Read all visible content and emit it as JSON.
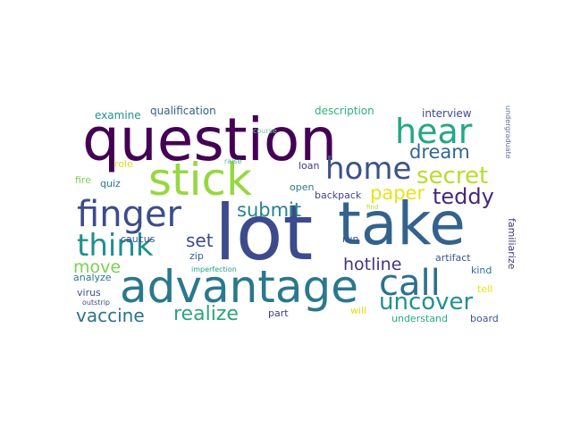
{
  "words": [
    {
      "text": "question",
      "color": "#440154"
    },
    {
      "text": "lot",
      "color": "#3b4b8c"
    },
    {
      "text": "take",
      "color": "#33638d"
    },
    {
      "text": "advantage",
      "color": "#2a788e"
    },
    {
      "text": "stick",
      "color": "#95d840"
    },
    {
      "text": "hear",
      "color": "#22a884"
    },
    {
      "text": "home",
      "color": "#3b528b"
    },
    {
      "text": "finger",
      "color": "#3d4d8a"
    },
    {
      "text": "call",
      "color": "#2c718e"
    },
    {
      "text": "think",
      "color": "#21908d"
    },
    {
      "text": "uncover",
      "color": "#21918c"
    },
    {
      "text": "secret",
      "color": "#b5de2b"
    },
    {
      "text": "dream",
      "color": "#31688e"
    },
    {
      "text": "paper",
      "color": "#e5e419"
    },
    {
      "text": "teddy",
      "color": "#482878"
    },
    {
      "text": "submit",
      "color": "#26828e"
    },
    {
      "text": "set",
      "color": "#3e4a89"
    },
    {
      "text": "realize",
      "color": "#2ea37e"
    },
    {
      "text": "vaccine",
      "color": "#2c728e"
    },
    {
      "text": "hotline",
      "color": "#46327e"
    },
    {
      "text": "move",
      "color": "#7ad151"
    },
    {
      "text": "qualification",
      "color": "#35608d"
    },
    {
      "text": "examine",
      "color": "#21918c"
    },
    {
      "text": "description",
      "color": "#2db27d"
    },
    {
      "text": "interview",
      "color": "#3e4a89"
    },
    {
      "text": "undergraduate",
      "color": "#5e6f9f"
    },
    {
      "text": "course",
      "color": "#6cc9a4"
    },
    {
      "text": "raise",
      "color": "#56b893"
    },
    {
      "text": "role",
      "color": "#d8e219"
    },
    {
      "text": "loan",
      "color": "#443a83"
    },
    {
      "text": "fire",
      "color": "#7ad151"
    },
    {
      "text": "quiz",
      "color": "#2a788e"
    },
    {
      "text": "open",
      "color": "#2a788e"
    },
    {
      "text": "backpack",
      "color": "#414487"
    },
    {
      "text": "find",
      "color": "#b8de29"
    },
    {
      "text": "familiarize",
      "color": "#46327e"
    },
    {
      "text": "run",
      "color": "#3b528b"
    },
    {
      "text": "caucus",
      "color": "#3b528b"
    },
    {
      "text": "zip",
      "color": "#33638d"
    },
    {
      "text": "artifact",
      "color": "#38588c"
    },
    {
      "text": "kind",
      "color": "#2c728e"
    },
    {
      "text": "analyze",
      "color": "#2a788e"
    },
    {
      "text": "imperfection",
      "color": "#20a386"
    },
    {
      "text": "virus",
      "color": "#3b528b"
    },
    {
      "text": "tell",
      "color": "#e3e418"
    },
    {
      "text": "outstrip",
      "color": "#3e4a89"
    },
    {
      "text": "part",
      "color": "#433e85"
    },
    {
      "text": "will",
      "color": "#d2e21b"
    },
    {
      "text": "understand",
      "color": "#27ad81"
    },
    {
      "text": "board",
      "color": "#39568c"
    }
  ]
}
